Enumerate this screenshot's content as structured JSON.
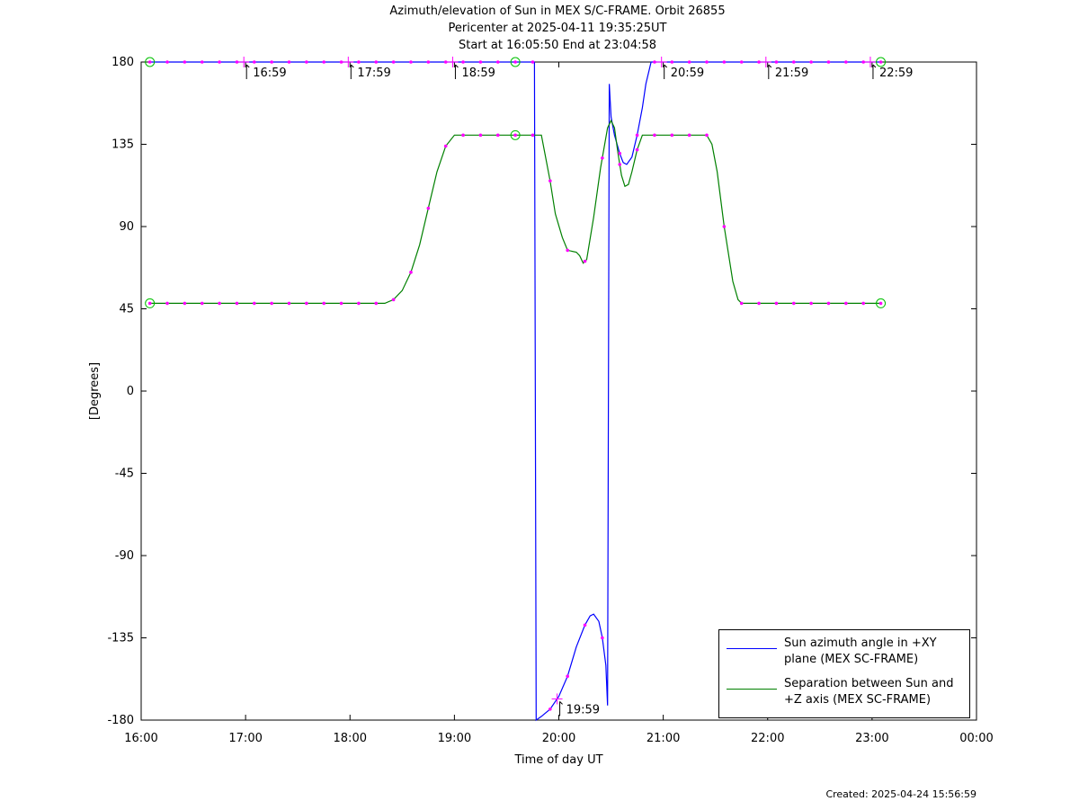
{
  "title": {
    "line1": "Azimuth/elevation of Sun in MEX S/C-FRAME.  Orbit 26855",
    "line2": "Pericenter at 2025-04-11 19:35:25UT",
    "line3": "Start at 16:05:50 End at 23:04:58"
  },
  "created": "Created: 2025-04-24 15:56:59",
  "colors": {
    "azimuth": "#0000ff",
    "separation": "#008000",
    "markers": "#ff00ff",
    "axis": "#000000"
  },
  "chart_data": {
    "type": "line",
    "xlabel": "Time of day UT",
    "ylabel": "[Degrees]",
    "xlim": [
      "16:00",
      "00:00"
    ],
    "ylim": [
      -180,
      180
    ],
    "x_ticks": [
      "16:00",
      "17:00",
      "18:00",
      "19:00",
      "20:00",
      "21:00",
      "22:00",
      "23:00",
      "00:00"
    ],
    "y_ticks": [
      180,
      135,
      90,
      45,
      0,
      -45,
      -90,
      -135,
      -180
    ],
    "grid": false,
    "legend_position": "bottom-right",
    "series": [
      {
        "name": "Sun azimuth angle in +XY plane (MEX SC-FRAME)",
        "color": "#0000ff",
        "points": [
          [
            "16:05",
            180
          ],
          [
            "19:46",
            180
          ],
          [
            "19:47",
            -180
          ],
          [
            "19:50",
            -178
          ],
          [
            "19:55",
            -174
          ],
          [
            "20:00",
            -167
          ],
          [
            "20:05",
            -156
          ],
          [
            "20:10",
            -140
          ],
          [
            "20:15",
            -128
          ],
          [
            "20:18",
            -123
          ],
          [
            "20:20",
            -122
          ],
          [
            "20:23",
            -126
          ],
          [
            "20:25",
            -135
          ],
          [
            "20:27",
            -150
          ],
          [
            "20:28",
            -172
          ],
          [
            "20:29",
            168
          ],
          [
            "20:30",
            150
          ],
          [
            "20:32",
            140
          ],
          [
            "20:35",
            130
          ],
          [
            "20:37",
            125
          ],
          [
            "20:39",
            124
          ],
          [
            "20:42",
            128
          ],
          [
            "20:45",
            140
          ],
          [
            "20:48",
            155
          ],
          [
            "20:50",
            168
          ],
          [
            "20:53",
            180
          ],
          [
            "23:05",
            180
          ]
        ]
      },
      {
        "name": "Separation between Sun and +Z axis (MEX SC-FRAME)",
        "color": "#008000",
        "points": [
          [
            "16:05",
            48
          ],
          [
            "18:20",
            48
          ],
          [
            "18:25",
            50
          ],
          [
            "18:30",
            55
          ],
          [
            "18:35",
            65
          ],
          [
            "18:40",
            80
          ],
          [
            "18:45",
            100
          ],
          [
            "18:50",
            120
          ],
          [
            "18:55",
            134
          ],
          [
            "19:00",
            140
          ],
          [
            "19:50",
            140
          ],
          [
            "19:52",
            130
          ],
          [
            "19:55",
            115
          ],
          [
            "19:58",
            97
          ],
          [
            "20:02",
            84
          ],
          [
            "20:05",
            77
          ],
          [
            "20:10",
            76
          ],
          [
            "20:12",
            74
          ],
          [
            "20:14",
            70
          ],
          [
            "20:16",
            72
          ],
          [
            "20:20",
            95
          ],
          [
            "20:24",
            122
          ],
          [
            "20:28",
            144
          ],
          [
            "20:30",
            148
          ],
          [
            "20:32",
            144
          ],
          [
            "20:34",
            130
          ],
          [
            "20:36",
            118
          ],
          [
            "20:38",
            112
          ],
          [
            "20:40",
            113
          ],
          [
            "20:42",
            120
          ],
          [
            "20:45",
            132
          ],
          [
            "20:48",
            140
          ],
          [
            "21:25",
            140
          ],
          [
            "21:28",
            135
          ],
          [
            "21:31",
            120
          ],
          [
            "21:35",
            90
          ],
          [
            "21:40",
            60
          ],
          [
            "21:43",
            50
          ],
          [
            "21:45",
            48
          ],
          [
            "23:05",
            48
          ]
        ]
      }
    ],
    "annotations": [
      "16:59",
      "17:59",
      "18:59",
      "19:59",
      "20:59",
      "21:59",
      "22:59"
    ]
  }
}
